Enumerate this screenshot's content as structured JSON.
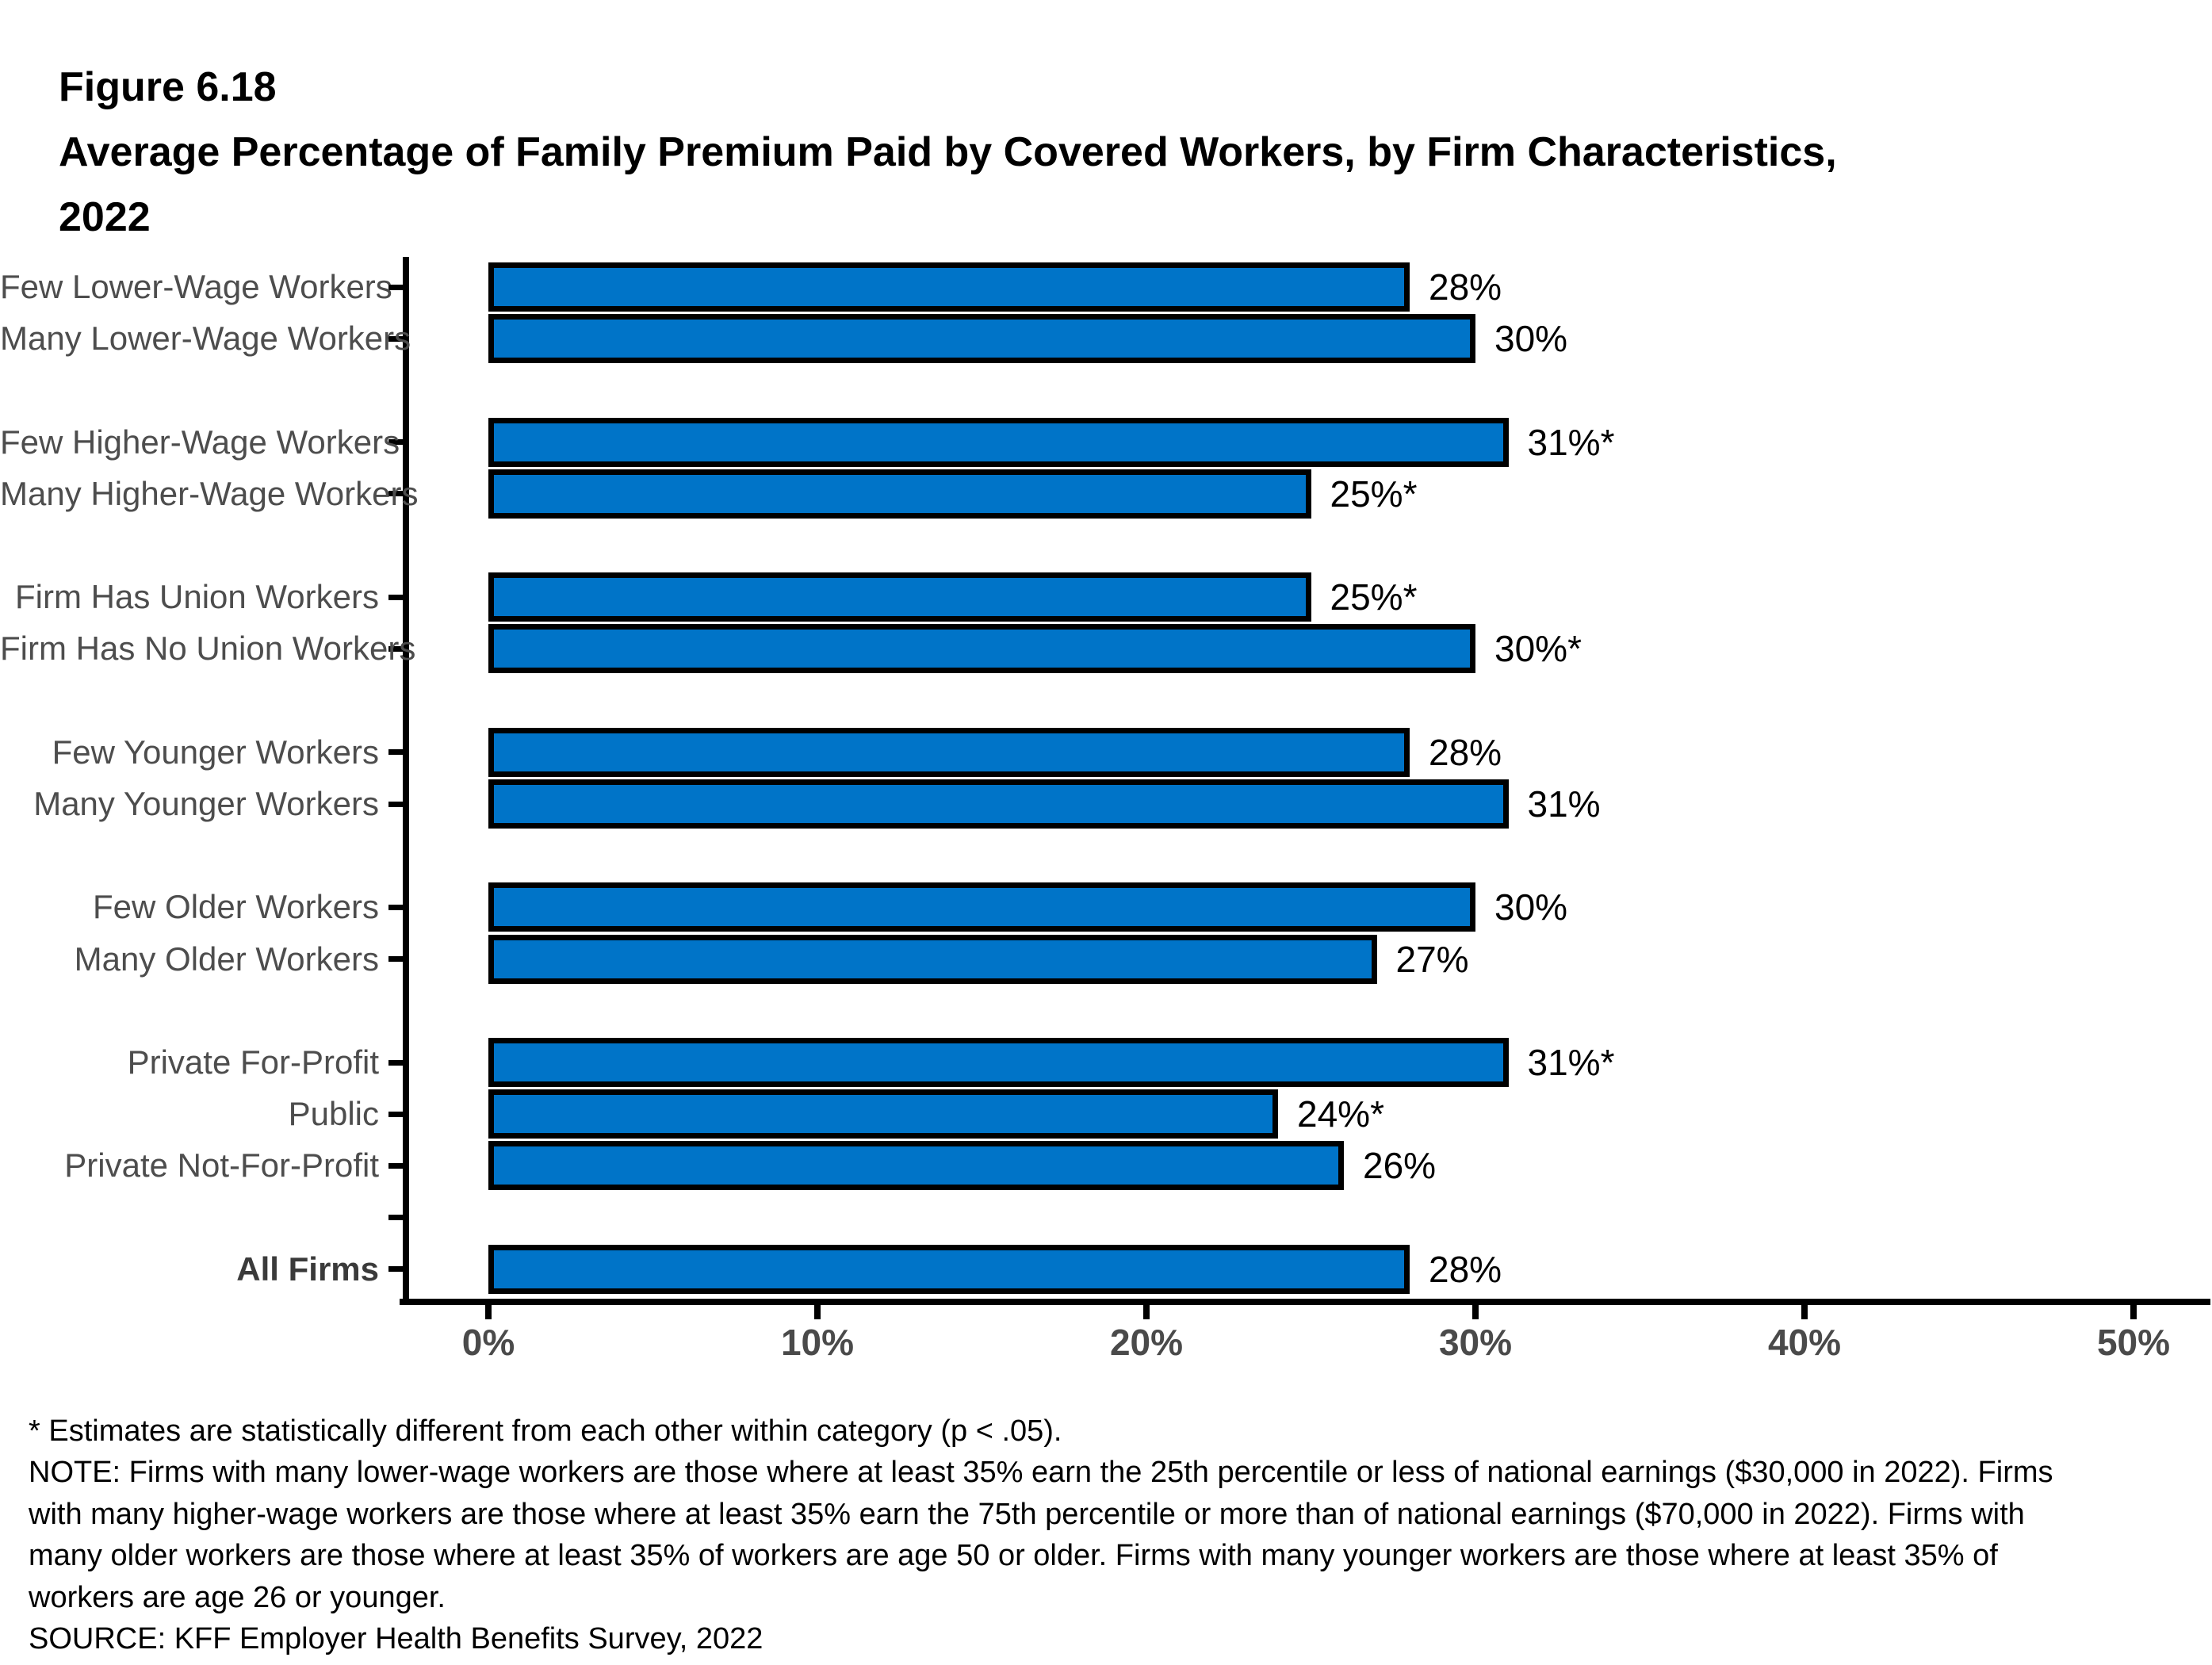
{
  "figure": {
    "label": "Figure 6.18",
    "title": "Average Percentage of Family Premium Paid by Covered Workers, by Firm Characteristics,",
    "title_year": "2022"
  },
  "chart_data": {
    "type": "bar",
    "orientation": "horizontal",
    "title": "Average Percentage of Family Premium Paid by Covered Workers, by Firm Characteristics, 2022",
    "xlabel": "",
    "ylabel": "",
    "xlim": [
      0,
      50
    ],
    "x_tick_labels": [
      "0%",
      "10%",
      "20%",
      "30%",
      "40%",
      "50%"
    ],
    "grid": false,
    "legend": false,
    "bar_color": "#0074C8",
    "bar_border_color": "#000000",
    "rows": [
      {
        "label": "Few Lower-Wage Workers",
        "value": 28,
        "display": "28%",
        "slot": 1,
        "bold": false
      },
      {
        "label": "Many Lower-Wage Workers",
        "value": 30,
        "display": "30%",
        "slot": 2,
        "bold": false
      },
      {
        "label": "Few Higher-Wage Workers",
        "value": 31,
        "display": "31%*",
        "slot": 4,
        "bold": false
      },
      {
        "label": "Many Higher-Wage Workers",
        "value": 25,
        "display": "25%*",
        "slot": 5,
        "bold": false
      },
      {
        "label": "Firm Has Union Workers",
        "value": 25,
        "display": "25%*",
        "slot": 7,
        "bold": false
      },
      {
        "label": "Firm Has No Union Workers",
        "value": 30,
        "display": "30%*",
        "slot": 8,
        "bold": false
      },
      {
        "label": "Few Younger Workers",
        "value": 28,
        "display": "28%",
        "slot": 10,
        "bold": false
      },
      {
        "label": "Many Younger Workers",
        "value": 31,
        "display": "31%",
        "slot": 11,
        "bold": false
      },
      {
        "label": "Few Older Workers",
        "value": 30,
        "display": "30%",
        "slot": 13,
        "bold": false
      },
      {
        "label": "Many Older Workers",
        "value": 27,
        "display": "27%",
        "slot": 14,
        "bold": false
      },
      {
        "label": "Private For-Profit",
        "value": 31,
        "display": "31%*",
        "slot": 16,
        "bold": false
      },
      {
        "label": "Public",
        "value": 24,
        "display": "24%*",
        "slot": 17,
        "bold": false
      },
      {
        "label": "Private Not-For-Profit",
        "value": 26,
        "display": "26%",
        "slot": 18,
        "bold": false
      },
      {
        "label": "",
        "value": null,
        "display": "",
        "slot": 19,
        "bold": false
      },
      {
        "label": "All Firms",
        "value": 28,
        "display": "28%",
        "slot": 20,
        "bold": true
      }
    ]
  },
  "footnotes": {
    "lines": [
      "* Estimates are statistically different from each other within category (p < .05).",
      "NOTE: Firms with many lower-wage workers are those where at least 35% earn the 25th percentile or less of national earnings ($30,000 in 2022). Firms",
      "with many higher-wage workers are those where at least 35% earn the 75th percentile or more than of national earnings ($70,000 in 2022). Firms with",
      "many older workers are those where at least 35% of workers are age 50 or older. Firms with many younger workers are those where at least 35% of",
      "workers are age 26 or younger.",
      "SOURCE: KFF Employer Health Benefits Survey, 2022"
    ]
  }
}
